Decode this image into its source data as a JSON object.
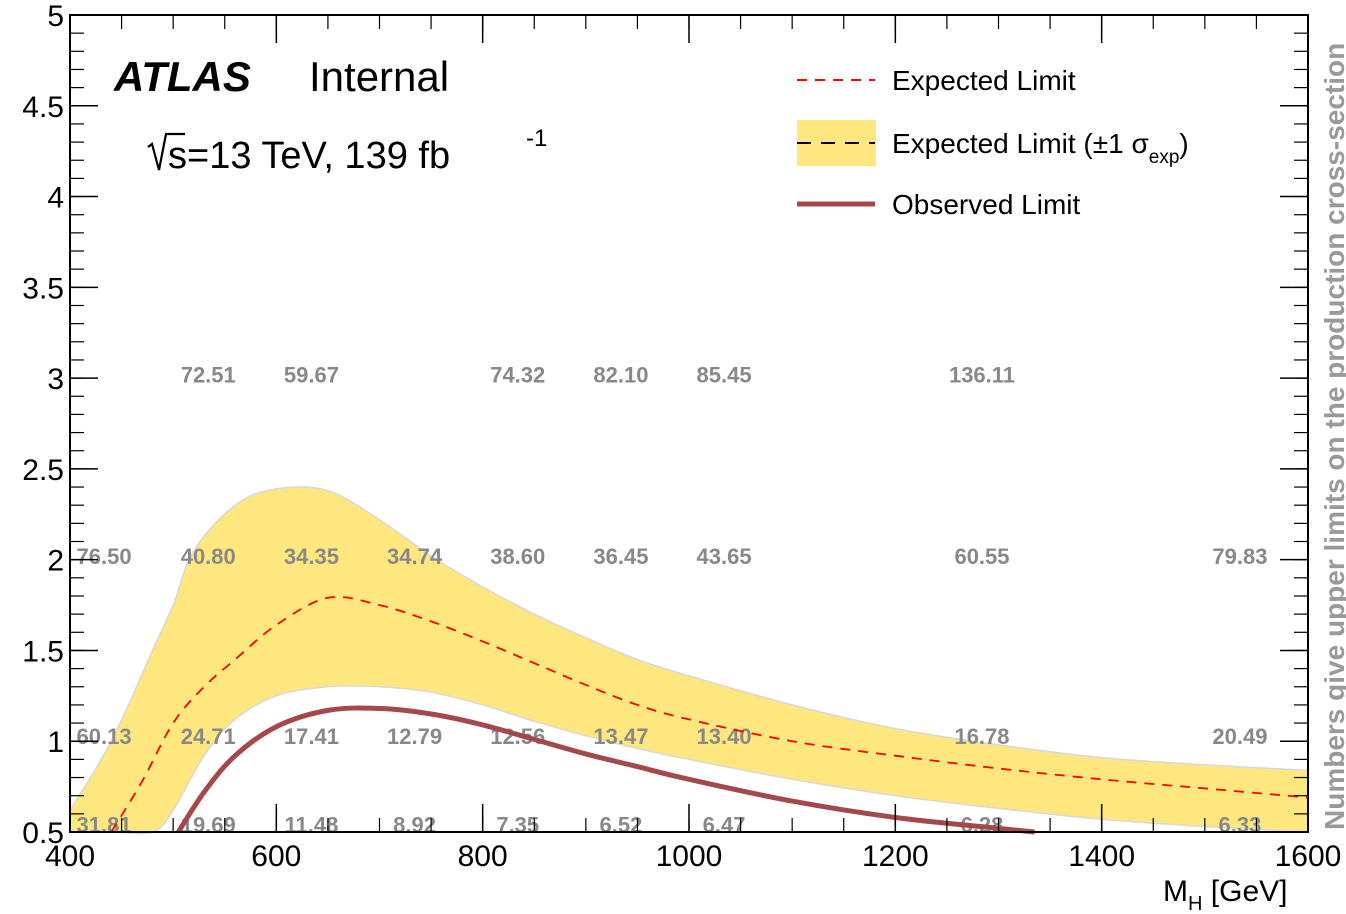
{
  "chart_data": {
    "type": "line",
    "xlabel": "M",
    "xlabel_sub": "H",
    "xlabel_unit": " [GeV]",
    "ylabel": "",
    "xlim": [
      400,
      1600
    ],
    "ylim": [
      0.5,
      5
    ],
    "x_ticks": [
      400,
      600,
      800,
      1000,
      1200,
      1400,
      1600
    ],
    "y_ticks": [
      0.5,
      1,
      1.5,
      2,
      2.5,
      3,
      3.5,
      4,
      4.5,
      5
    ],
    "x_tick_labels": [
      "400",
      "600",
      "800",
      "1000",
      "1200",
      "1400",
      "1600"
    ],
    "y_tick_labels": [
      "0.5",
      "1",
      "1.5",
      "2",
      "2.5",
      "3",
      "3.5",
      "4",
      "4.5",
      "5"
    ],
    "experiment": "ATLAS",
    "status": "Internal",
    "energy_label": "s=13 TeV, 139 fb",
    "energy_sup": "-1",
    "side_note": "Numbers give upper limits on the production cross-section",
    "legend": {
      "position": "top-right",
      "entries": [
        {
          "label": "Expected Limit",
          "style": "red-dashed"
        },
        {
          "label": "Expected Limit (±1 σ",
          "sub": "exp",
          "tail": ")",
          "style": "band"
        },
        {
          "label": "Observed Limit",
          "style": "solid-brown"
        }
      ]
    },
    "series": [
      {
        "name": "Expected Limit",
        "color": "#ff0000",
        "x": [
          440,
          470,
          500,
          530,
          560,
          600,
          650,
          700,
          750,
          800,
          850,
          900,
          950,
          1000,
          1100,
          1200,
          1300,
          1400,
          1500,
          1600
        ],
        "y": [
          0.5,
          0.78,
          1.1,
          1.3,
          1.45,
          1.64,
          1.79,
          1.75,
          1.66,
          1.55,
          1.43,
          1.31,
          1.2,
          1.12,
          1.0,
          0.92,
          0.85,
          0.79,
          0.74,
          0.69
        ]
      },
      {
        "name": "Expected Limit (±1 σexp) upper",
        "color": "#fee77e",
        "x": [
          400,
          440,
          480,
          500,
          520,
          560,
          600,
          650,
          700,
          750,
          800,
          850,
          900,
          950,
          1000,
          1100,
          1200,
          1300,
          1400,
          1500,
          1600
        ],
        "y": [
          0.62,
          1.0,
          1.5,
          1.75,
          2.05,
          2.3,
          2.39,
          2.38,
          2.22,
          2.02,
          1.85,
          1.7,
          1.57,
          1.45,
          1.36,
          1.2,
          1.07,
          0.98,
          0.91,
          0.87,
          0.84
        ]
      },
      {
        "name": "Expected Limit (±1 σexp) lower",
        "color": "#fee77e",
        "x": [
          400,
          440,
          480,
          500,
          530,
          560,
          600,
          650,
          700,
          750,
          800,
          850,
          900,
          950,
          1000,
          1100,
          1200,
          1300,
          1400,
          1500,
          1600
        ],
        "y": [
          0.5,
          0.5,
          0.5,
          0.62,
          0.92,
          1.12,
          1.25,
          1.3,
          1.3,
          1.27,
          1.2,
          1.11,
          1.03,
          0.96,
          0.9,
          0.79,
          0.7,
          0.63,
          0.57,
          0.53,
          0.5
        ]
      },
      {
        "name": "Observed Limit",
        "color": "#a4494b",
        "x": [
          505,
          530,
          560,
          600,
          650,
          700,
          750,
          800,
          850,
          900,
          950,
          1000,
          1100,
          1200,
          1300,
          1335
        ],
        "y": [
          0.5,
          0.72,
          0.92,
          1.08,
          1.17,
          1.18,
          1.15,
          1.09,
          1.01,
          0.93,
          0.86,
          0.79,
          0.67,
          0.58,
          0.52,
          0.5
        ]
      }
    ],
    "annotations": [
      {
        "x": 433,
        "y": 3.02,
        "text": ""
      },
      {
        "x": 534,
        "y": 3.02,
        "text": "72.51"
      },
      {
        "x": 634,
        "y": 3.02,
        "text": "59.67"
      },
      {
        "x": 834,
        "y": 3.02,
        "text": "74.32"
      },
      {
        "x": 934,
        "y": 3.02,
        "text": "82.10"
      },
      {
        "x": 1034,
        "y": 3.02,
        "text": "85.45"
      },
      {
        "x": 1284,
        "y": 3.02,
        "text": "136.11"
      },
      {
        "x": 433,
        "y": 2.02,
        "text": "76.50"
      },
      {
        "x": 534,
        "y": 2.02,
        "text": "40.80"
      },
      {
        "x": 634,
        "y": 2.02,
        "text": "34.35"
      },
      {
        "x": 734,
        "y": 2.02,
        "text": "34.74"
      },
      {
        "x": 834,
        "y": 2.02,
        "text": "38.60"
      },
      {
        "x": 934,
        "y": 2.02,
        "text": "36.45"
      },
      {
        "x": 1034,
        "y": 2.02,
        "text": "43.65"
      },
      {
        "x": 1284,
        "y": 2.02,
        "text": "60.55"
      },
      {
        "x": 1534,
        "y": 2.02,
        "text": "79.83"
      },
      {
        "x": 433,
        "y": 1.03,
        "text": "60.13"
      },
      {
        "x": 534,
        "y": 1.03,
        "text": "24.71"
      },
      {
        "x": 634,
        "y": 1.03,
        "text": "17.41"
      },
      {
        "x": 734,
        "y": 1.03,
        "text": "12.79"
      },
      {
        "x": 834,
        "y": 1.03,
        "text": "12.56"
      },
      {
        "x": 934,
        "y": 1.03,
        "text": "13.47"
      },
      {
        "x": 1034,
        "y": 1.03,
        "text": "13.40"
      },
      {
        "x": 1284,
        "y": 1.03,
        "text": "16.78"
      },
      {
        "x": 1534,
        "y": 1.03,
        "text": "20.49"
      },
      {
        "x": 433,
        "y": 0.54,
        "text": "31.81"
      },
      {
        "x": 534,
        "y": 0.54,
        "text": "19.69"
      },
      {
        "x": 634,
        "y": 0.54,
        "text": "11.48"
      },
      {
        "x": 734,
        "y": 0.54,
        "text": "8.92"
      },
      {
        "x": 834,
        "y": 0.54,
        "text": "7.35"
      },
      {
        "x": 934,
        "y": 0.54,
        "text": "6.52"
      },
      {
        "x": 1034,
        "y": 0.54,
        "text": "6.47"
      },
      {
        "x": 1284,
        "y": 0.54,
        "text": "6.28"
      },
      {
        "x": 1534,
        "y": 0.54,
        "text": "6.33"
      }
    ]
  }
}
